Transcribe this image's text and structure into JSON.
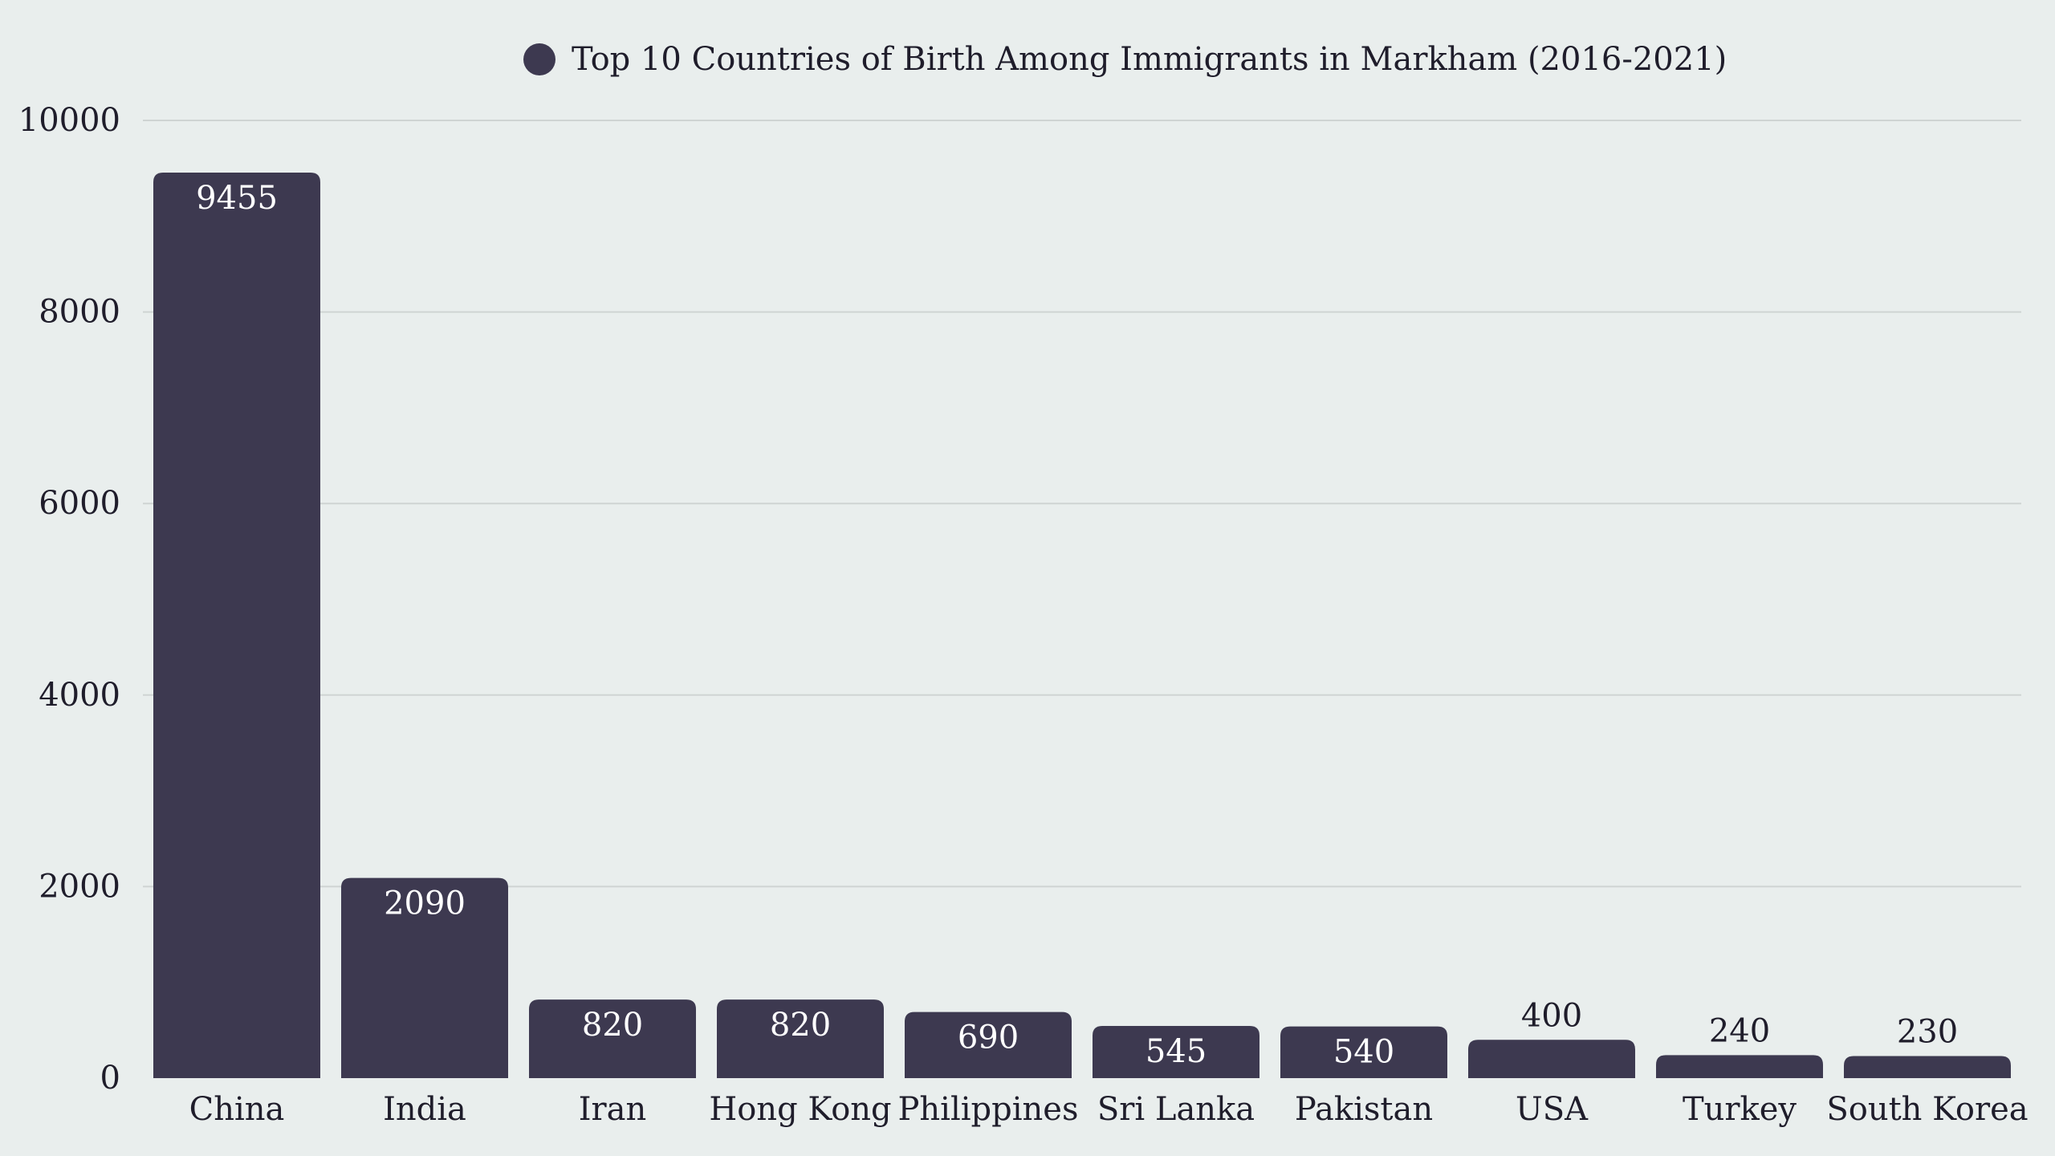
{
  "chart_data": {
    "type": "bar",
    "legend": {
      "label": "Top 10 Countries of Birth Among Immigrants in Markham (2016-2021)",
      "placement": "top-center",
      "marker": "circle"
    },
    "categories": [
      "China",
      "India",
      "Iran",
      "Hong Kong",
      "Philippines",
      "Sri Lanka",
      "Pakistan",
      "USA",
      "Turkey",
      "South Korea"
    ],
    "series": [
      {
        "name": "Top 10 Countries of Birth Among Immigrants in Markham (2016-2021)",
        "values": [
          9455,
          2090,
          820,
          820,
          690,
          545,
          540,
          400,
          240,
          230
        ],
        "color": "#3d3950"
      }
    ],
    "ylim": [
      0,
      10000
    ],
    "yticks": [
      0,
      2000,
      4000,
      6000,
      8000,
      10000
    ],
    "grid": true,
    "data_labels": true
  },
  "colors": {
    "background": "#e9eeed",
    "bar": "#3d3950",
    "text": "#1f1d2b",
    "grid": "#cfd4d3"
  }
}
